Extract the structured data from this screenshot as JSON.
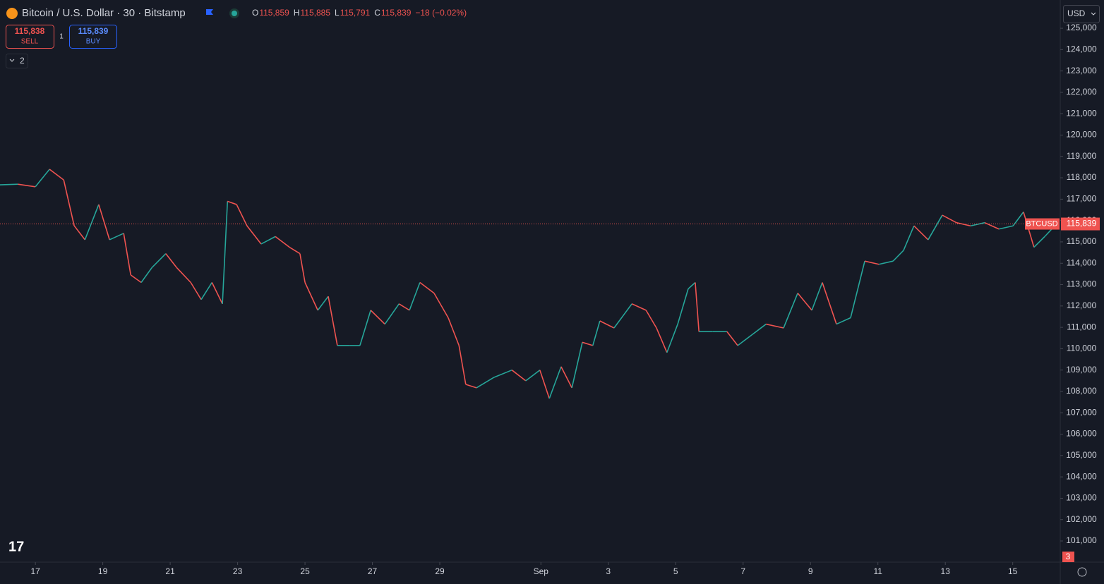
{
  "header": {
    "symbol": "Bitcoin / U.S. Dollar · 30 · Bitstamp",
    "ohlc": [
      {
        "key": "O",
        "value": "115,859"
      },
      {
        "key": "H",
        "value": "115,885"
      },
      {
        "key": "L",
        "value": "115,791"
      },
      {
        "key": "C",
        "value": "115,839"
      }
    ],
    "change": "−18 (−0.02%)"
  },
  "trade": {
    "sell_price": "115,838",
    "sell": "SELL",
    "qty": "1",
    "buy_price": "115,839",
    "buy": "BUY"
  },
  "indicators_toggle": "2",
  "currency": "USD",
  "alerts_badge": "3",
  "chart_data": {
    "type": "line",
    "up_color": "#26a69a",
    "down_color": "#ef5350",
    "x": [
      -1.05,
      -0.52,
      0,
      0.42,
      0.84,
      1.15,
      1.47,
      1.88,
      2.2,
      2.62,
      2.83,
      3.14,
      3.46,
      3.87,
      4.19,
      4.61,
      4.92,
      5.24,
      5.55,
      5.7,
      5.97,
      6.28,
      6.7,
      7.12,
      7.54,
      7.85,
      8.0,
      8.38,
      8.69,
      8.96,
      9.32,
      9.63,
      9.95,
      10.37,
      10.79,
      11.1,
      11.41,
      11.83,
      12.25,
      12.57,
      12.77,
      13.09,
      13.61,
      14.14,
      14.55,
      14.97,
      15.25,
      15.6,
      15.92,
      16.23,
      16.54,
      16.75,
      17.17,
      17.7,
      18.12,
      18.43,
      18.74,
      19.06,
      19.37,
      19.58,
      19.69,
      20.1,
      20.52,
      20.84,
      21.26,
      21.68,
      22.2,
      22.62,
      23.04,
      23.35,
      23.77,
      24.19,
      24.61,
      25.03,
      25.45,
      25.76,
      26.07,
      26.49,
      26.91,
      27.33,
      27.75,
      28.17,
      28.59,
      29.01,
      29.32,
      29.63,
      29.95,
      30.3
    ],
    "series": [
      {
        "name": "BTCUSD",
        "values": [
          117670,
          117700,
          117580,
          118400,
          117900,
          115760,
          115100,
          116750,
          115100,
          115400,
          113450,
          113100,
          113800,
          114450,
          113800,
          113100,
          112300,
          113100,
          112100,
          116900,
          116750,
          115750,
          114900,
          115250,
          114750,
          114450,
          113100,
          111800,
          112450,
          110150,
          110150,
          110150,
          111800,
          111150,
          112100,
          111800,
          113100,
          112600,
          111450,
          110150,
          108330,
          108170,
          108660,
          109000,
          108500,
          109000,
          107670,
          109160,
          108170,
          110300,
          110150,
          111300,
          110970,
          112100,
          111800,
          110970,
          109820,
          111150,
          112800,
          113100,
          110800,
          110800,
          110800,
          110150,
          110650,
          111150,
          110970,
          112600,
          111800,
          113100,
          111150,
          111450,
          114100,
          113950,
          114100,
          114600,
          115750,
          115100,
          116250,
          115900,
          115750,
          115900,
          115600,
          115750,
          116400,
          114750,
          115250,
          115839
        ]
      }
    ],
    "last_price": {
      "value": 115839,
      "label": "115,839"
    },
    "xlim": [
      -1.05,
      30.41
    ],
    "xticks": [
      {
        "value": 0,
        "label": "17"
      },
      {
        "value": 2,
        "label": "19"
      },
      {
        "value": 4,
        "label": "21"
      },
      {
        "value": 6,
        "label": "23"
      },
      {
        "value": 8,
        "label": "25"
      },
      {
        "value": 10,
        "label": "27"
      },
      {
        "value": 12,
        "label": "29"
      },
      {
        "value": 15,
        "label": "Sep"
      },
      {
        "value": 17,
        "label": "3"
      },
      {
        "value": 19,
        "label": "5"
      },
      {
        "value": 21,
        "label": "7"
      },
      {
        "value": 23,
        "label": "9"
      },
      {
        "value": 25,
        "label": "11"
      },
      {
        "value": 27,
        "label": "13"
      },
      {
        "value": 29,
        "label": "15"
      }
    ],
    "ylim": [
      100010,
      126190
    ],
    "yticks": [
      {
        "value": 101000,
        "label": "101,000"
      },
      {
        "value": 102000,
        "label": "102,000"
      },
      {
        "value": 103000,
        "label": "103,000"
      },
      {
        "value": 104000,
        "label": "104,000"
      },
      {
        "value": 105000,
        "label": "105,000"
      },
      {
        "value": 106000,
        "label": "106,000"
      },
      {
        "value": 107000,
        "label": "107,000"
      },
      {
        "value": 108000,
        "label": "108,000"
      },
      {
        "value": 109000,
        "label": "109,000"
      },
      {
        "value": 110000,
        "label": "110,000"
      },
      {
        "value": 111000,
        "label": "111,000"
      },
      {
        "value": 112000,
        "label": "112,000"
      },
      {
        "value": 113000,
        "label": "113,000"
      },
      {
        "value": 114000,
        "label": "114,000"
      },
      {
        "value": 115000,
        "label": "115,000"
      },
      {
        "value": 116000,
        "label": "116,000"
      },
      {
        "value": 117000,
        "label": "117,000"
      },
      {
        "value": 118000,
        "label": "118,000"
      },
      {
        "value": 119000,
        "label": "119,000"
      },
      {
        "value": 120000,
        "label": "120,000"
      },
      {
        "value": 121000,
        "label": "121,000"
      },
      {
        "value": 122000,
        "label": "122,000"
      },
      {
        "value": 123000,
        "label": "123,000"
      },
      {
        "value": 124000,
        "label": "124,000"
      },
      {
        "value": 125000,
        "label": "125,000"
      }
    ]
  }
}
